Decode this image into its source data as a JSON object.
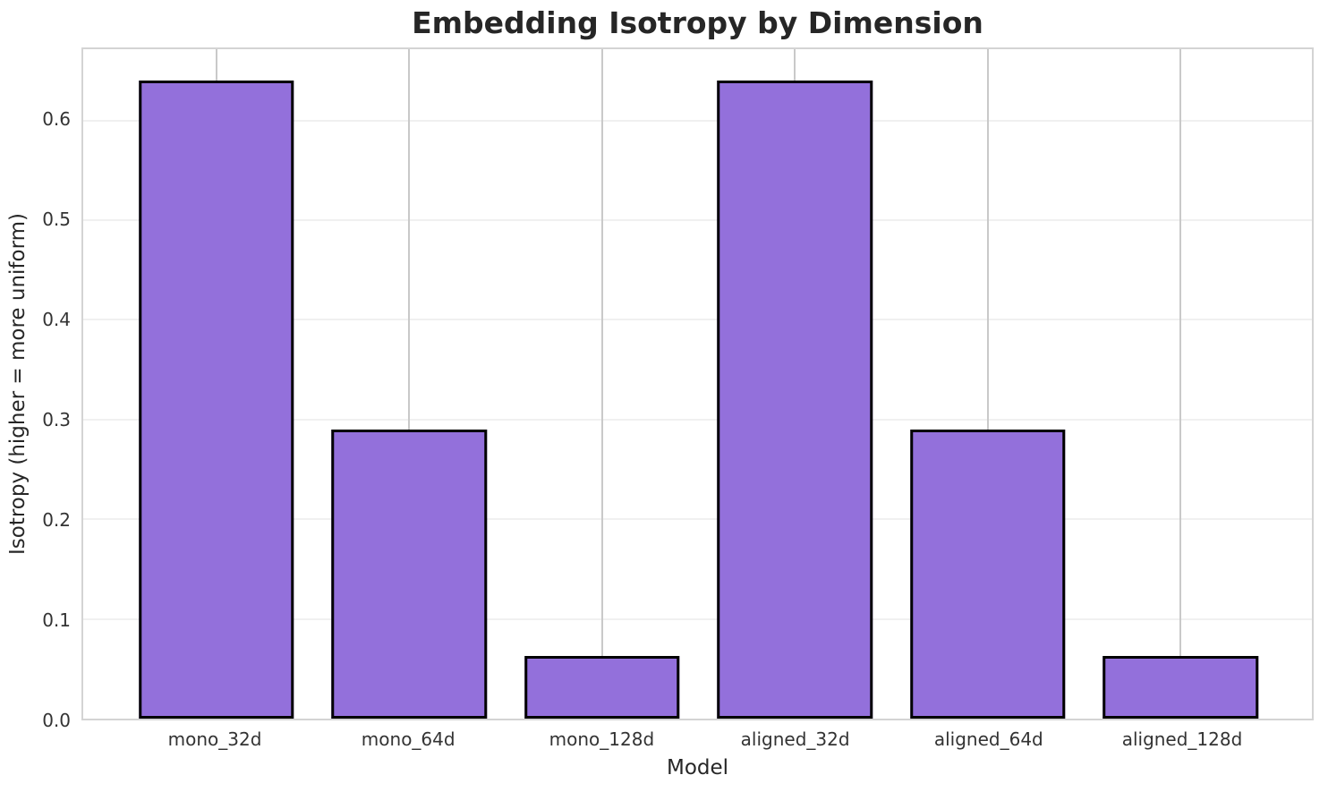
{
  "chart_data": {
    "type": "bar",
    "title": "Embedding Isotropy by Dimension",
    "xlabel": "Model",
    "ylabel": "Isotropy (higher = more uniform)",
    "categories": [
      "mono_32d",
      "mono_64d",
      "mono_128d",
      "aligned_32d",
      "aligned_64d",
      "aligned_128d"
    ],
    "values": [
      0.64,
      0.29,
      0.063,
      0.64,
      0.29,
      0.063
    ],
    "yticks": [
      0.0,
      0.1,
      0.2,
      0.3,
      0.4,
      0.5,
      0.6
    ],
    "ytick_labels": [
      "0.0",
      "0.1",
      "0.2",
      "0.3",
      "0.4",
      "0.5",
      "0.6"
    ],
    "ylim": [
      0,
      0.6714
    ],
    "grid": "on",
    "legend": "none",
    "bar_color": "#9370DB",
    "bar_edge_color": "#000000"
  }
}
